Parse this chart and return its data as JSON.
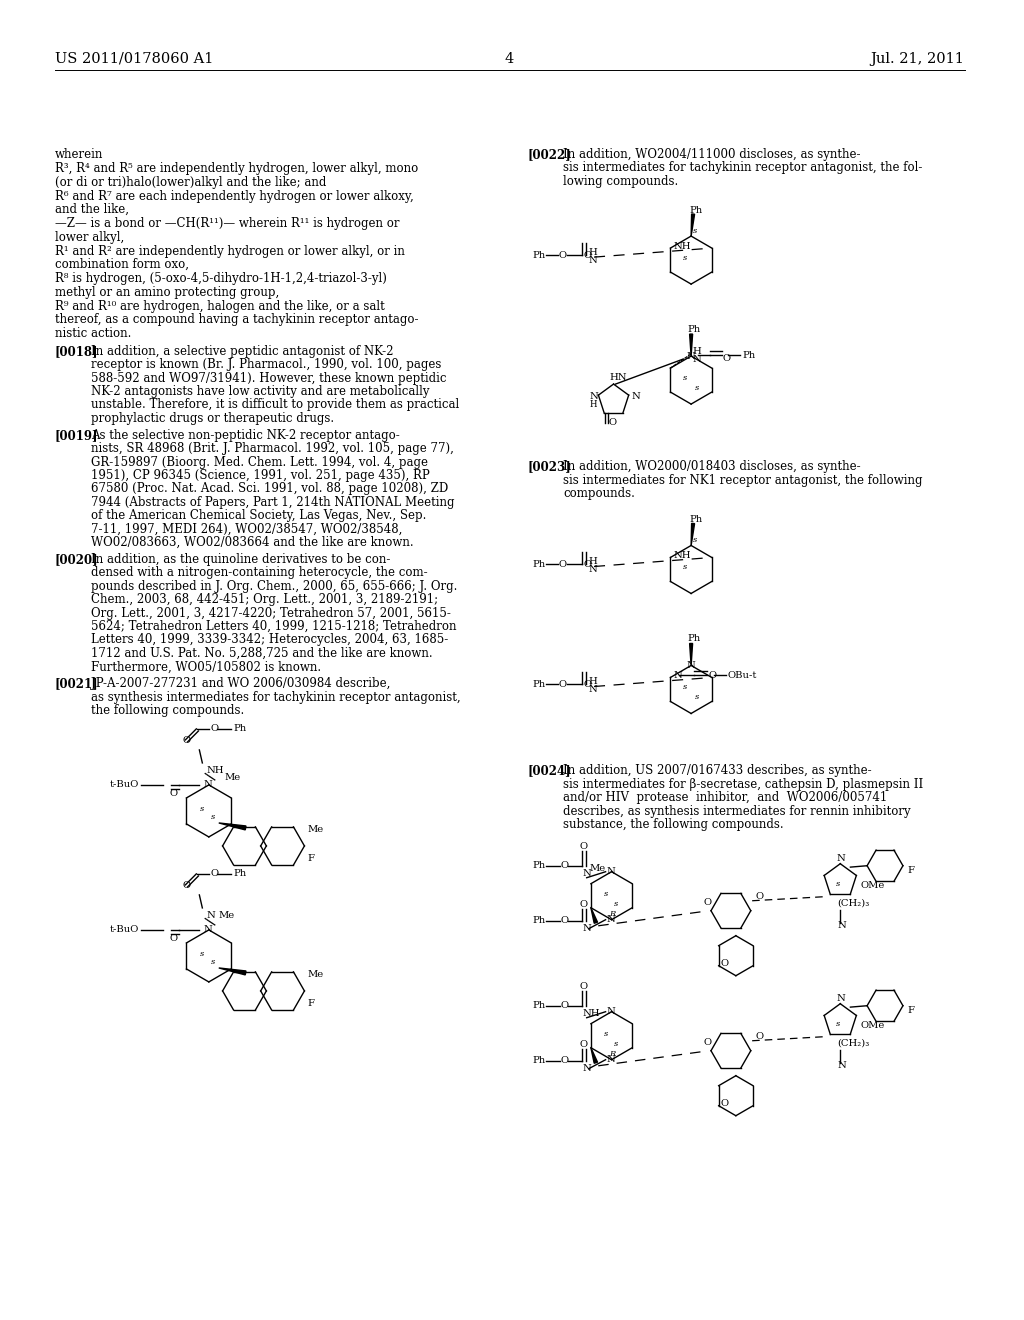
{
  "bg": "#ffffff",
  "header_left": "US 2011/0178060 A1",
  "header_right": "Jul. 21, 2011",
  "page_num": "4",
  "fsize": 8.5,
  "fsize_chem": 7.2,
  "fsize_stereo": 6.0
}
